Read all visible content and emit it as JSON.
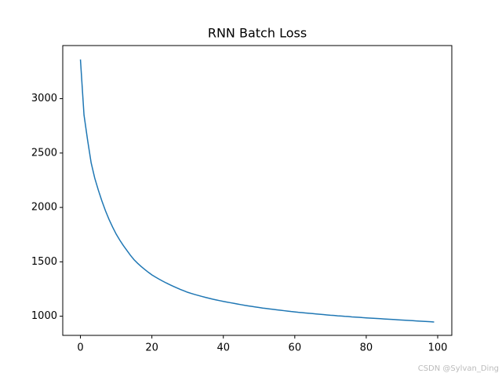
{
  "chart_data": {
    "type": "line",
    "title": "RNN Batch Loss",
    "watermark": "CSDN @Sylvan_Ding",
    "x": [
      0,
      1,
      2,
      3,
      4,
      5,
      6,
      7,
      8,
      9,
      10,
      11,
      12,
      13,
      14,
      15,
      16,
      17,
      18,
      19,
      20,
      21,
      22,
      23,
      24,
      25,
      26,
      27,
      28,
      29,
      30,
      31,
      32,
      33,
      34,
      35,
      36,
      37,
      38,
      39,
      40,
      41,
      42,
      43,
      44,
      45,
      46,
      47,
      48,
      49,
      50,
      51,
      52,
      53,
      54,
      55,
      56,
      57,
      58,
      59,
      60,
      61,
      62,
      63,
      64,
      65,
      66,
      67,
      68,
      69,
      70,
      71,
      72,
      73,
      74,
      75,
      76,
      77,
      78,
      79,
      80,
      81,
      82,
      83,
      84,
      85,
      86,
      87,
      88,
      89,
      90,
      91,
      92,
      93,
      94,
      95,
      96,
      97,
      98,
      99
    ],
    "series": [
      {
        "color": "#1f77b4",
        "values": [
          3360,
          2850,
          2620,
          2410,
          2270,
          2160,
          2060,
          1970,
          1890,
          1820,
          1755,
          1700,
          1650,
          1605,
          1560,
          1520,
          1487,
          1457,
          1430,
          1404,
          1380,
          1360,
          1341,
          1323,
          1306,
          1290,
          1275,
          1260,
          1246,
          1233,
          1220,
          1210,
          1200,
          1191,
          1182,
          1173,
          1165,
          1157,
          1150,
          1143,
          1136,
          1130,
          1124,
          1118,
          1112,
          1106,
          1100,
          1095,
          1090,
          1085,
          1080,
          1075,
          1071,
          1067,
          1063,
          1059,
          1055,
          1051,
          1047,
          1043,
          1040,
          1036,
          1033,
          1030,
          1027,
          1024,
          1021,
          1018,
          1015,
          1012,
          1009,
          1007,
          1004,
          1002,
          999,
          997,
          994,
          992,
          990,
          987,
          985,
          983,
          981,
          979,
          977,
          975,
          973,
          971,
          969,
          967,
          965,
          963,
          961,
          959,
          957,
          955,
          953,
          951,
          949,
          947
        ]
      }
    ],
    "xlim": [
      -4.95,
      103.95
    ],
    "xticks": [
      0,
      20,
      40,
      60,
      80,
      100
    ],
    "ylim": [
      824,
      3488
    ],
    "yticks": [
      1000,
      1500,
      2000,
      2500,
      3000
    ]
  }
}
